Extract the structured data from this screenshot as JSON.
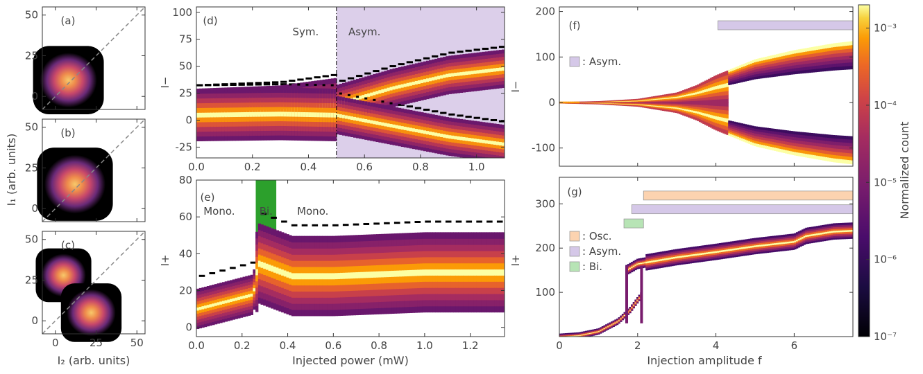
{
  "chart_data": [
    {
      "type": "heatmap",
      "panel": "(a)",
      "xlim": [
        -8,
        55
      ],
      "ylim": [
        -8,
        55
      ],
      "xticks": [
        0,
        25,
        50
      ],
      "yticks": [
        0,
        25,
        50
      ],
      "diagonal": "dashed y=x",
      "blobs": [
        {
          "center": [
            8,
            10
          ],
          "radius": 14
        }
      ]
    },
    {
      "type": "heatmap",
      "panel": "(b)",
      "xlim": [
        -8,
        55
      ],
      "ylim": [
        -8,
        55
      ],
      "xticks": [
        0,
        25,
        50
      ],
      "yticks": [
        0,
        25,
        50
      ],
      "diagonal": "dashed y=x",
      "blobs": [
        {
          "center": [
            12,
            15
          ],
          "radius": 15
        }
      ]
    },
    {
      "type": "heatmap",
      "panel": "(c)",
      "xlim": [
        -8,
        55
      ],
      "ylim": [
        -8,
        55
      ],
      "xticks": [
        0,
        25,
        50
      ],
      "yticks": [
        0,
        25,
        50
      ],
      "diagonal": "dashed y=x",
      "blobs": [
        {
          "center": [
            5,
            28
          ],
          "radius": 11
        },
        {
          "center": [
            22,
            5
          ],
          "radius": 12
        }
      ]
    },
    {
      "type": "heatmap",
      "panel": "(d)",
      "ylabel": "I−",
      "xlim": [
        0,
        1.1
      ],
      "ylim": [
        -35,
        105
      ],
      "xticks": [
        0.0,
        0.2,
        0.4,
        0.6,
        0.8,
        1.0
      ],
      "yticks": [
        -25,
        0,
        25,
        50,
        75,
        100
      ],
      "annotations": [
        "Sym.",
        "Asym."
      ],
      "transition_x": 0.5,
      "asym_region": [
        0.5,
        1.1
      ],
      "branches": [
        {
          "x": [
            0.0,
            0.3,
            0.5,
            0.7,
            0.9,
            1.1
          ],
          "center": [
            5,
            8,
            15,
            30,
            42,
            48
          ]
        },
        {
          "x": [
            0.0,
            0.3,
            0.5,
            0.7,
            0.9,
            1.1
          ],
          "center": [
            5,
            6,
            5,
            -5,
            -15,
            -22
          ]
        }
      ]
    },
    {
      "type": "heatmap",
      "panel": "(e)",
      "ylabel": "I+",
      "xlabel": "Injected power (mW)",
      "xlim": [
        0,
        1.35
      ],
      "ylim": [
        -5,
        80
      ],
      "xticks": [
        0.0,
        0.2,
        0.4,
        0.6,
        0.8,
        1.0,
        1.2
      ],
      "yticks": [
        0,
        20,
        40,
        60,
        80
      ],
      "annotations": [
        "Mono.",
        "Bi.",
        "Mono."
      ],
      "bistable_region": [
        0.26,
        0.35
      ],
      "band": {
        "x": [
          0.0,
          0.25,
          0.27,
          0.42,
          0.6,
          1.0,
          1.35
        ],
        "center": [
          10,
          18,
          35,
          28,
          28,
          30,
          30
        ]
      }
    },
    {
      "type": "heatmap",
      "panel": "(f)",
      "ylabel": "I−",
      "xlim": [
        0,
        7.5
      ],
      "ylim": [
        -140,
        210
      ],
      "xticks": [
        0,
        2,
        4,
        6
      ],
      "yticks": [
        -100,
        0,
        100,
        200
      ],
      "legend": [
        {
          "label": ": Asym.",
          "color": "#d5c8e8"
        }
      ],
      "bars": [
        {
          "name": "Asym.",
          "range": [
            4.05,
            7.5
          ],
          "color": "#d5c8e8"
        }
      ],
      "envelope": {
        "f": [
          0,
          1,
          2,
          3,
          3.5,
          4,
          5,
          6,
          7,
          7.5
        ],
        "amp": [
          1,
          3,
          8,
          22,
          38,
          60,
          95,
          115,
          130,
          135
        ]
      }
    },
    {
      "type": "heatmap",
      "panel": "(g)",
      "ylabel": "I+",
      "xlabel": "Injection amplitude f",
      "xlim": [
        0,
        7.5
      ],
      "ylim": [
        0,
        360
      ],
      "xticks": [
        0,
        2,
        4,
        6
      ],
      "yticks": [
        100,
        200,
        300
      ],
      "legend": [
        {
          "label": ": Osc.",
          "color": "#fcd3b0"
        },
        {
          "label": ": Asym.",
          "color": "#d5c8e8"
        },
        {
          "label": ": Bi.",
          "color": "#b7e4b5"
        }
      ],
      "bars": [
        {
          "name": "Osc.",
          "range": [
            2.15,
            7.5
          ],
          "y": 318,
          "color": "#fcd3b0"
        },
        {
          "name": "Asym.",
          "range": [
            1.85,
            7.5
          ],
          "y": 287,
          "color": "#d5c8e8"
        },
        {
          "name": "Bi.",
          "range": [
            1.65,
            2.15
          ],
          "y": 255,
          "color": "#b7e4b5"
        }
      ],
      "lower_branch": {
        "f": [
          0,
          0.5,
          1,
          1.5,
          1.8,
          2.1
        ],
        "y": [
          0,
          3,
          12,
          35,
          60,
          95
        ]
      },
      "upper_branch": {
        "f": [
          1.7,
          2.0,
          3,
          4,
          5,
          6,
          6.3,
          7,
          7.5
        ],
        "y": [
          150,
          165,
          180,
          192,
          205,
          215,
          228,
          238,
          240
        ]
      }
    }
  ],
  "labels": {
    "abc_xlabel": "I₂ (arb. units)",
    "abc_ylabel": "I₁ (arb. units)",
    "d_annot_sym": "Sym.",
    "d_annot_asym": "Asym.",
    "e_mono1": "Mono.",
    "e_bi": "Bi.",
    "e_mono2": "Mono.",
    "e_xlabel": "Injected power (mW)",
    "g_xlabel": "Injection amplitude f",
    "colorbar_label": "Normalized count"
  },
  "colorbar": {
    "scale": "log",
    "range": [
      1e-07,
      0.002
    ],
    "ticks": [
      "10⁻³",
      "10⁻⁴",
      "10⁻⁵",
      "10⁻⁶",
      "10⁻⁷"
    ]
  }
}
